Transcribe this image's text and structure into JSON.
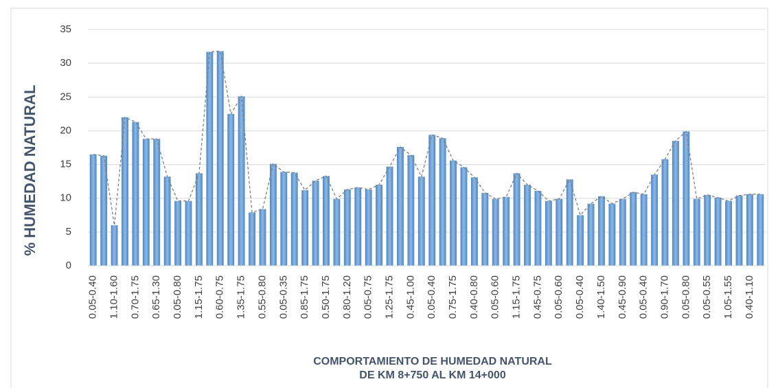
{
  "chart_data": {
    "type": "bar",
    "y_label": "% HUMEDAD NATURAL",
    "x_label": [
      "COMPORTAMIENTO DE HUMEDAD NATURAL",
      "DE KM 8+750 AL KM 14+000"
    ],
    "categories": [
      "0.05-0.40",
      null,
      "1.10-1.60",
      null,
      "0.70-1.75",
      null,
      "0.65-1.30",
      null,
      "0.05-0.80",
      null,
      "1.15-1.75",
      null,
      "0.60-0.75",
      null,
      "1.35-1.75",
      null,
      "0.55-0.80",
      null,
      "0.05-0.35",
      null,
      "0.85-1.75",
      null,
      "0.50-1.75",
      null,
      "0.80-1.20",
      null,
      "0.05-0.75",
      null,
      "1.25-1.75",
      null,
      "0.45-1.00",
      null,
      "0.05-0.40",
      null,
      "0.75-1.75",
      null,
      "0.40-0.80",
      null,
      "0.05-0.60",
      null,
      "1.15-1.75",
      null,
      "0.45-0.75",
      null,
      "0.05-0.60",
      null,
      "0.05-0.40",
      null,
      "1.40-1.50",
      null,
      "0.45-0.90",
      null,
      "0.05-0.40",
      null,
      "0.90-1.70",
      null,
      "0.05-0.80",
      null,
      "0.05-0.55",
      null,
      "1.05-1.55",
      null,
      "0.40-1.10",
      null
    ],
    "values": [
      16.5,
      16.3,
      6,
      22,
      21.3,
      18.8,
      18.8,
      13.2,
      9.6,
      9.6,
      13.7,
      31.7,
      31.8,
      22.5,
      25.1,
      7.9,
      8.4,
      15.1,
      13.9,
      13.8,
      11.2,
      12.6,
      13.3,
      9.9,
      11.3,
      11.6,
      11.3,
      12,
      14.7,
      17.6,
      16.4,
      13.2,
      19.4,
      18.9,
      15.6,
      14.6,
      13.1,
      10.8,
      9.9,
      10.2,
      13.7,
      12,
      11.1,
      9.6,
      9.9,
      12.8,
      7.5,
      9.2,
      10.3,
      9.2,
      9.9,
      10.9,
      10.6,
      13.5,
      15.8,
      18.5,
      19.9,
      9.9,
      10.5,
      10.1,
      9.6,
      10.4,
      10.6,
      10.6
    ],
    "color": "#5b9bd5",
    "line_color": "#7f7f7f",
    "ylim": [
      0,
      35
    ],
    "yticks": [
      0,
      5,
      10,
      15,
      20,
      25,
      30,
      35
    ],
    "grid": true
  }
}
